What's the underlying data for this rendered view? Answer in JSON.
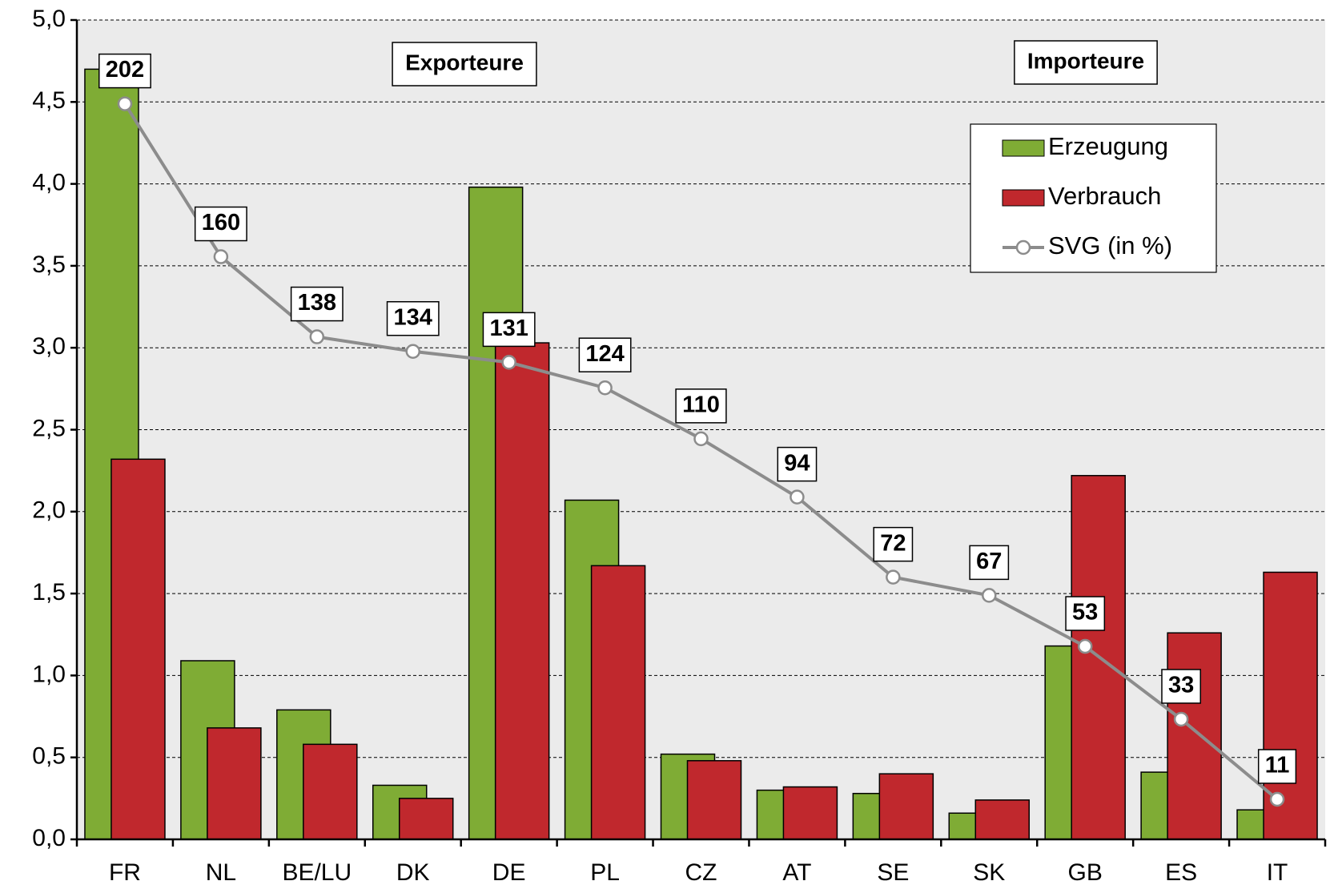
{
  "chart_data": {
    "type": "bar",
    "categories": [
      "FR",
      "NL",
      "BE/LU",
      "DK",
      "DE",
      "PL",
      "CZ",
      "AT",
      "SE",
      "SK",
      "GB",
      "ES",
      "IT"
    ],
    "series": [
      {
        "name": "Erzeugung",
        "color": "#7fac35",
        "values": [
          4.7,
          1.09,
          0.79,
          0.33,
          3.98,
          2.07,
          0.52,
          0.3,
          0.28,
          0.16,
          1.18,
          0.41,
          0.18
        ]
      },
      {
        "name": "Verbrauch",
        "color": "#c0282d",
        "values": [
          2.32,
          0.68,
          0.58,
          0.25,
          3.03,
          1.67,
          0.48,
          0.32,
          0.4,
          0.24,
          2.22,
          1.26,
          1.63
        ]
      },
      {
        "name": "SVG (in %)",
        "color": "#8c8c8c",
        "type": "line",
        "axis": "y2",
        "values": [
          202,
          160,
          138,
          134,
          131,
          124,
          110,
          94,
          72,
          67,
          53,
          33,
          11
        ]
      }
    ],
    "ylim": [
      0,
      5
    ],
    "yticks": [
      {
        "value": 0,
        "label": "0,0"
      },
      {
        "value": 0.5,
        "label": "0,5"
      },
      {
        "value": 1,
        "label": "1,0"
      },
      {
        "value": 1.5,
        "label": "1,5"
      },
      {
        "value": 2,
        "label": "2,0"
      },
      {
        "value": 2.5,
        "label": "2,5"
      },
      {
        "value": 3,
        "label": "3,0"
      },
      {
        "value": 3.5,
        "label": "3,5"
      },
      {
        "value": 4,
        "label": "4,0"
      },
      {
        "value": 4.5,
        "label": "4,5"
      },
      {
        "value": 5,
        "label": "5,0"
      }
    ],
    "y2lim": [
      0,
      225
    ],
    "grid": true,
    "legend": "upper right",
    "annotations": [
      "Exporteure",
      "Importeure"
    ]
  }
}
